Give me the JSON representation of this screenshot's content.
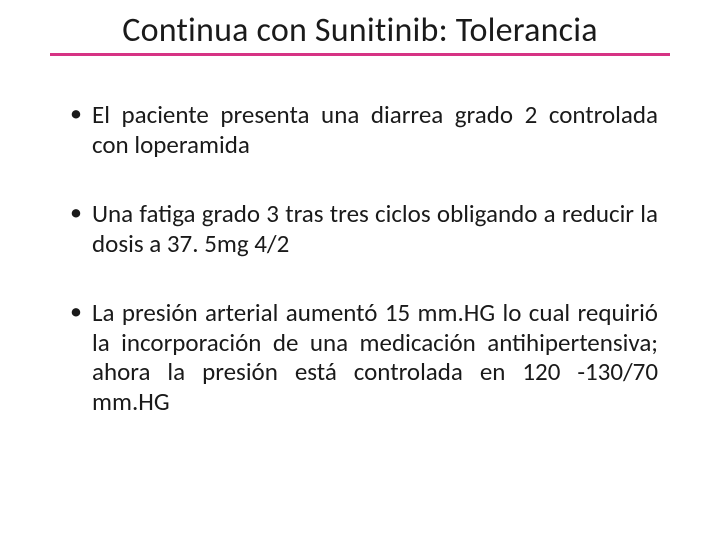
{
  "slide": {
    "title": "Continua con Sunitinib: Tolerancia",
    "underline_color": "#d63384",
    "background_color": "#ffffff",
    "text_color": "#1a1a1a",
    "title_fontsize": 34,
    "body_fontsize": 25,
    "bullets": [
      "El paciente presenta una diarrea grado 2 controlada con loperamida",
      "Una fatiga grado 3 tras tres  ciclos obligando a reducir la dosis a 37. 5mg 4/2",
      "La presión arterial aumentó 15 mm.HG lo cual requirió la incorporación de una medicación antihipertensiva; ahora la presión está controlada en 120 -130/70 mm.HG"
    ]
  }
}
